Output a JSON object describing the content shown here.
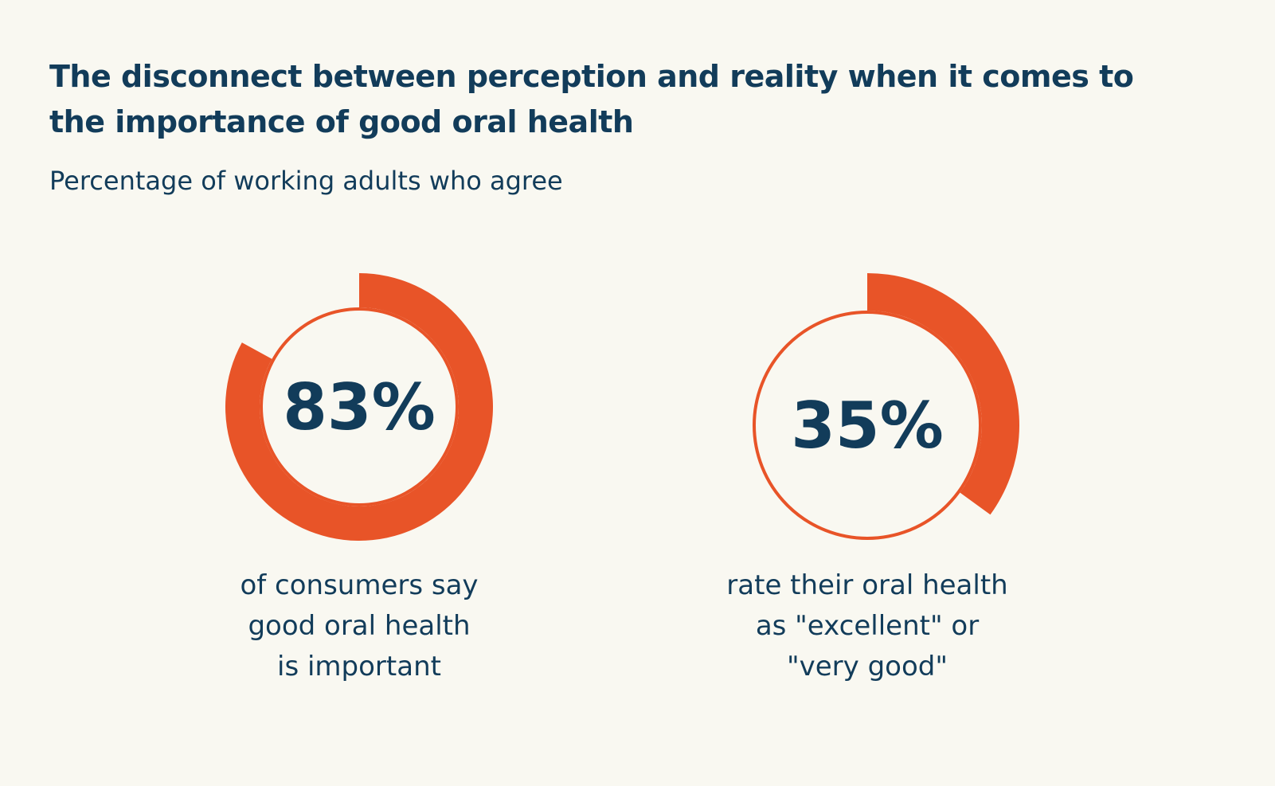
{
  "chart_data": {
    "type": "donut",
    "title": "The disconnect between perception and reality when it comes to the importance of good oral health",
    "subtitle": "Percentage of working adults who agree",
    "unit": "%",
    "items": [
      {
        "value": 83,
        "label": "83%",
        "caption": "of consumers say good oral health is important",
        "caption_lines": [
          "of consumers say",
          "good oral health",
          "is important"
        ]
      },
      {
        "value": 35,
        "label": "35%",
        "caption": "rate their oral health as \"excellent\" or \"very good\"",
        "caption_lines": [
          "rate their oral health",
          "as \"excellent\" or",
          "\"very good\""
        ]
      }
    ],
    "colors": {
      "arc": "#e85428",
      "text": "#123c5a",
      "background": "#f9f8f1"
    }
  }
}
